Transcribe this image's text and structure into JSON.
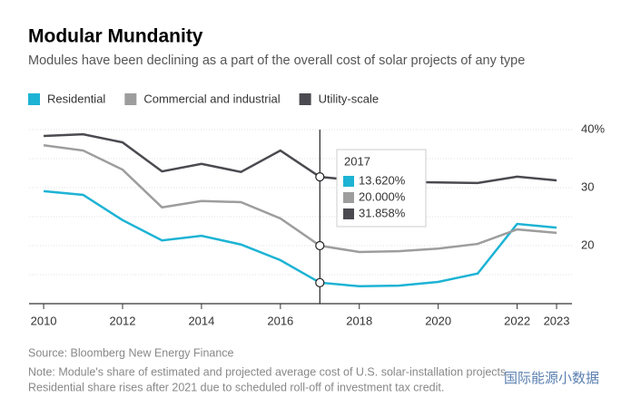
{
  "chart_data": {
    "type": "line",
    "title": "Modular Mundanity",
    "subtitle": "Modules have been declining as a part of the overall cost of solar projects of any type",
    "x": [
      2010,
      2011,
      2012,
      2013,
      2014,
      2015,
      2016,
      2017,
      2018,
      2019,
      2020,
      2021,
      2022,
      2023
    ],
    "series": [
      {
        "name": "Residential",
        "color": "#1db3d4",
        "values": [
          29.4,
          28.75,
          24.4,
          20.9,
          21.7,
          20.2,
          17.5,
          13.62,
          13.0,
          13.1,
          13.75,
          15.2,
          23.75,
          23.1
        ]
      },
      {
        "name": "Commercial and industrial",
        "color": "#9d9d9d",
        "values": [
          37.3,
          36.4,
          33.1,
          26.6,
          27.7,
          27.5,
          24.7,
          20.0,
          18.9,
          19.05,
          19.5,
          20.3,
          22.8,
          22.2
        ]
      },
      {
        "name": "Utility-scale",
        "color": "#4a4a50",
        "values": [
          38.9,
          39.2,
          37.8,
          32.8,
          34.1,
          32.7,
          36.4,
          31.858,
          31.2,
          31.0,
          30.9,
          30.8,
          31.9,
          31.25
        ]
      }
    ],
    "xlim": [
      2009.63,
      2023.39
    ],
    "xticks": [
      2010,
      2012,
      2014,
      2016,
      2018,
      2020,
      2022,
      2023
    ],
    "ylim": [
      10,
      40
    ],
    "yticks": [
      20,
      30,
      {
        "value": 40,
        "label": "40%"
      }
    ],
    "minor_gridlines": [
      15,
      25,
      35
    ],
    "grid": true,
    "legend": "top",
    "tooltip": {
      "x": 2017,
      "title": "2017",
      "value_labels": [
        "13.620%",
        "20.000%",
        "31.858%"
      ]
    },
    "source": "Source: Bloomberg New Energy Finance",
    "note": [
      "Note: Module's share of estimated and projected average cost of U.S. solar-installation projects.",
      "Residential share rises after 2021 due to scheduled roll-off of investment tax credit."
    ],
    "watermark": "国际能源小数据"
  }
}
